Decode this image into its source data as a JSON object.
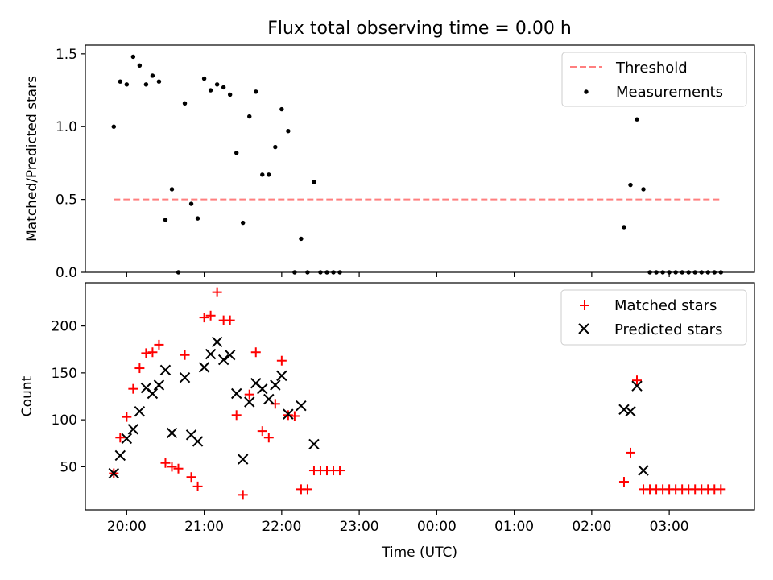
{
  "colors": {
    "threshold": "#ff7f7f",
    "measurement": "#000000",
    "matched": "#ff0000",
    "predicted": "#000000"
  },
  "chart_data": [
    {
      "type": "scatter",
      "title": "Flux total observing time = 0.00 h",
      "xlabel": "",
      "ylabel": "Matched/Predicted stars",
      "xlim": [
        "19:28",
        "04:06"
      ],
      "ylim": [
        0,
        1.56
      ],
      "yticks": [
        "0.0",
        "0.5",
        "1.0",
        "1.5"
      ],
      "legend_position": "top-right",
      "series": [
        {
          "name": "Threshold",
          "kind": "dashed-line",
          "x": [
            "19:50",
            "03:40"
          ],
          "y": [
            0.5,
            0.5
          ]
        },
        {
          "name": "Measurements",
          "kind": "points",
          "x": [
            "19:50",
            "19:55",
            "20:00",
            "20:05",
            "20:10",
            "20:15",
            "20:20",
            "20:25",
            "20:30",
            "20:35",
            "20:40",
            "20:45",
            "20:50",
            "20:55",
            "21:00",
            "21:05",
            "21:10",
            "21:15",
            "21:20",
            "21:25",
            "21:30",
            "21:35",
            "21:40",
            "21:45",
            "21:50",
            "21:55",
            "22:00",
            "22:05",
            "22:10",
            "22:15",
            "22:20",
            "22:25",
            "22:30",
            "22:35",
            "22:40",
            "22:45",
            "02:25",
            "02:30",
            "02:35",
            "02:40",
            "02:45",
            "02:50",
            "02:55",
            "03:00",
            "03:05",
            "03:10",
            "03:15",
            "03:20",
            "03:25",
            "03:30",
            "03:35",
            "03:40"
          ],
          "y": [
            1.0,
            1.31,
            1.29,
            1.48,
            1.42,
            1.29,
            1.35,
            1.31,
            0.36,
            0.57,
            0.0,
            1.16,
            0.47,
            0.37,
            1.33,
            1.25,
            1.29,
            1.27,
            1.22,
            0.82,
            0.34,
            1.07,
            1.24,
            0.67,
            0.67,
            0.86,
            1.12,
            0.97,
            0.0,
            0.23,
            0.0,
            0.62,
            0.0,
            0.0,
            0.0,
            0.0,
            0.31,
            0.6,
            1.05,
            0.57,
            0.0,
            0.0,
            0.0,
            0.0,
            0.0,
            0.0,
            0.0,
            0.0,
            0.0,
            0.0,
            0.0,
            0.0
          ]
        }
      ]
    },
    {
      "type": "scatter",
      "title": "",
      "xlabel": "Time (UTC)",
      "ylabel": "Count",
      "xlim": [
        "19:28",
        "04:06"
      ],
      "ylim": [
        4,
        246
      ],
      "yticks": [
        "50",
        "100",
        "150",
        "200"
      ],
      "xticks": [
        "20:00",
        "21:00",
        "22:00",
        "23:00",
        "00:00",
        "01:00",
        "02:00",
        "03:00"
      ],
      "legend_position": "top-right",
      "series": [
        {
          "name": "Matched stars",
          "marker": "plus",
          "x": [
            "19:50",
            "19:55",
            "20:00",
            "20:05",
            "20:10",
            "20:15",
            "20:20",
            "20:25",
            "20:30",
            "20:35",
            "20:40",
            "20:45",
            "20:50",
            "20:55",
            "21:00",
            "21:05",
            "21:10",
            "21:15",
            "21:20",
            "21:25",
            "21:30",
            "21:35",
            "21:40",
            "21:45",
            "21:50",
            "21:55",
            "22:00",
            "22:05",
            "22:10",
            "22:15",
            "22:20",
            "22:25",
            "22:30",
            "22:35",
            "22:40",
            "22:45",
            "02:25",
            "02:30",
            "02:35",
            "02:40",
            "02:45",
            "02:50",
            "02:55",
            "03:00",
            "03:05",
            "03:10",
            "03:15",
            "03:20",
            "03:25",
            "03:30",
            "03:35",
            "03:40"
          ],
          "y": [
            43,
            81,
            103,
            133,
            155,
            171,
            172,
            180,
            54,
            50,
            48,
            169,
            39,
            29,
            209,
            211,
            236,
            206,
            206,
            105,
            20,
            127,
            172,
            88,
            81,
            117,
            163,
            105,
            104,
            26,
            26,
            46,
            46,
            46,
            46,
            46,
            34,
            65,
            142,
            26,
            26,
            26,
            26,
            26,
            26,
            26,
            26,
            26,
            26,
            26,
            26,
            26
          ]
        },
        {
          "name": "Predicted stars",
          "marker": "cross",
          "x": [
            "19:50",
            "19:55",
            "20:00",
            "20:05",
            "20:10",
            "20:15",
            "20:20",
            "20:25",
            "20:30",
            "20:35",
            "20:45",
            "20:50",
            "20:55",
            "21:00",
            "21:05",
            "21:10",
            "21:15",
            "21:20",
            "21:25",
            "21:30",
            "21:35",
            "21:40",
            "21:45",
            "21:50",
            "21:55",
            "22:00",
            "22:05",
            "22:15",
            "22:25",
            "02:25",
            "02:30",
            "02:35",
            "02:40"
          ],
          "y": [
            43,
            62,
            80,
            90,
            109,
            134,
            128,
            137,
            153,
            86,
            145,
            84,
            77,
            156,
            170,
            183,
            164,
            169,
            128,
            58,
            119,
            139,
            133,
            122,
            137,
            147,
            106,
            115,
            74,
            111,
            109,
            136,
            46
          ]
        }
      ]
    }
  ]
}
